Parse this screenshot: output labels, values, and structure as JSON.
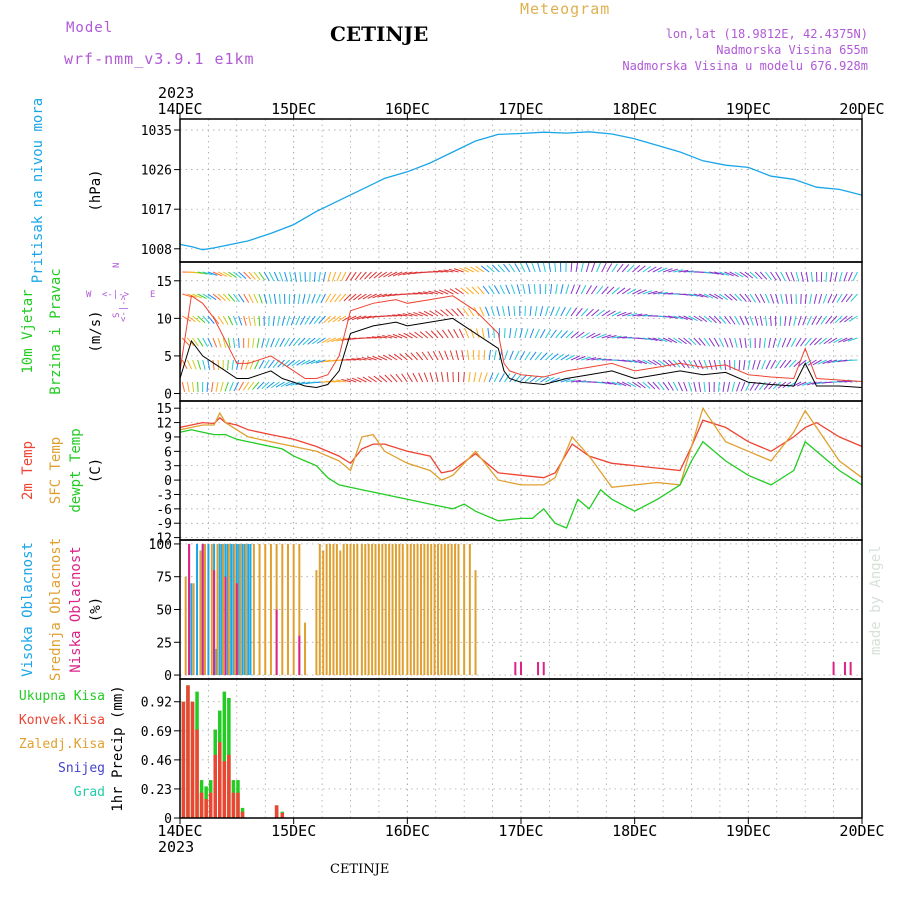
{
  "header": {
    "model_label": "Model",
    "model_name": "wrf-nmm_v3.9.1 e1km",
    "station_title": "CETINJE",
    "meteogram_label": "Meteogram",
    "lonlat": "lon,lat (18.9812E, 42.4375N)",
    "elevation": "Nadmorska Visina 655m",
    "model_elevation": "Nadmorska Visina u modelu 676.928m",
    "year_top": "2023",
    "year_bottom": "2023",
    "footer_station": "CETINJE",
    "credit": "made by Angel",
    "colors": {
      "model": "#b05ad6",
      "meteogram": "#e0b050",
      "station": "#000000"
    }
  },
  "time_axis": {
    "ticks": [
      "14DEC",
      "15DEC",
      "16DEC",
      "17DEC",
      "18DEC",
      "19DEC",
      "20DEC"
    ],
    "range_days": [
      0,
      6
    ]
  },
  "wind_legend": {
    "w": "W",
    "e": "E",
    "s": "S",
    "n": "N",
    "arrow_h": "<-|->",
    "arrow_v": "<-|->"
  },
  "chart_data": [
    {
      "type": "line",
      "panel": "pressure",
      "ylabel": [
        "Pritisak na nivou mora"
      ],
      "unit": "(hPa)",
      "yticks": [
        1008,
        1017,
        1026,
        1035
      ],
      "ylim": [
        1005,
        1037.5
      ],
      "grid": true,
      "series": [
        {
          "color": "#1aa6e8",
          "x": [
            0,
            0.1,
            0.2,
            0.3,
            0.45,
            0.6,
            0.8,
            1.0,
            1.2,
            1.4,
            1.6,
            1.8,
            2.0,
            2.2,
            2.4,
            2.6,
            2.8,
            3.0,
            3.2,
            3.4,
            3.6,
            3.8,
            4.0,
            4.2,
            4.4,
            4.6,
            4.8,
            5.0,
            5.2,
            5.4,
            5.6,
            5.8,
            6.0
          ],
          "y": [
            1009,
            1008.5,
            1007.8,
            1008.2,
            1009,
            1009.8,
            1011.5,
            1013.5,
            1016.5,
            1019,
            1021.5,
            1024,
            1025.5,
            1027.5,
            1030,
            1032.5,
            1034,
            1034.2,
            1034.5,
            1034.3,
            1034.6,
            1034.1,
            1033,
            1031.5,
            1030,
            1028,
            1027,
            1026.5,
            1024.5,
            1023.8,
            1022,
            1021.5,
            1020.2
          ]
        }
      ]
    },
    {
      "type": "line",
      "panel": "wind",
      "ylabel": [
        "10m Vjetar",
        "Brzina i Pravac"
      ],
      "unit": "(m/s)",
      "yticks": [
        0,
        5,
        10,
        15
      ],
      "ylim": [
        -1,
        17.5
      ],
      "grid": true,
      "series": [
        {
          "color": "#000000",
          "x": [
            0,
            0.1,
            0.2,
            0.3,
            0.4,
            0.5,
            0.6,
            0.7,
            0.8,
            0.9,
            1.0,
            1.1,
            1.2,
            1.3,
            1.4,
            1.5,
            1.7,
            1.9,
            2.0,
            2.2,
            2.4,
            2.6,
            2.7,
            2.8,
            2.85,
            2.9,
            3.0,
            3.2,
            3.4,
            3.6,
            3.8,
            4.0,
            4.2,
            4.4,
            4.6,
            4.8,
            5.0,
            5.2,
            5.4,
            5.5,
            5.6,
            5.8,
            6.0
          ],
          "y": [
            2,
            7,
            5,
            4,
            3,
            2,
            2,
            2.5,
            3,
            2,
            1.5,
            1,
            0.8,
            1.2,
            3,
            8,
            9,
            9.5,
            9,
            9.5,
            10,
            8,
            7,
            6,
            3,
            2,
            1.5,
            1.2,
            2,
            2.5,
            3,
            2,
            2.5,
            3,
            2.5,
            2.8,
            1.5,
            1.2,
            1,
            4,
            1,
            1,
            0.8
          ]
        },
        {
          "color": "#ee4433",
          "x": [
            0,
            0.1,
            0.2,
            0.3,
            0.4,
            0.5,
            0.6,
            0.7,
            0.8,
            0.9,
            1.0,
            1.1,
            1.2,
            1.3,
            1.4,
            1.5,
            1.7,
            1.9,
            2.0,
            2.2,
            2.4,
            2.6,
            2.7,
            2.8,
            2.85,
            2.9,
            3.0,
            3.2,
            3.4,
            3.6,
            3.8,
            4.0,
            4.2,
            4.4,
            4.6,
            4.8,
            5.0,
            5.2,
            5.4,
            5.5,
            5.6,
            5.8,
            6.0
          ],
          "y": [
            3,
            13,
            12,
            10,
            7,
            4,
            4,
            4.5,
            5,
            4,
            3,
            2,
            2,
            2.5,
            5,
            11,
            12,
            12.5,
            12,
            12.5,
            13,
            11,
            9.5,
            8,
            4,
            3,
            2.5,
            2.2,
            3,
            3.5,
            4,
            3,
            3.5,
            4,
            3.5,
            3.8,
            2.5,
            2.2,
            2,
            6,
            2,
            1.8,
            1.6
          ]
        }
      ]
    },
    {
      "type": "line",
      "panel": "temperature",
      "ylabel": [
        "2m Temp",
        "SFC Temp",
        "dewpt Temp"
      ],
      "unit": "(C)",
      "yticks": [
        -12,
        -9,
        -6,
        -3,
        0,
        3,
        6,
        9,
        12,
        15
      ],
      "ylim": [
        -12.5,
        16.5
      ],
      "grid": true,
      "series": [
        {
          "name": "2m Temp",
          "color": "#ee4433",
          "x": [
            0,
            0.1,
            0.2,
            0.3,
            0.35,
            0.4,
            0.5,
            0.6,
            0.8,
            1.0,
            1.2,
            1.4,
            1.5,
            1.6,
            1.7,
            1.8,
            2.0,
            2.2,
            2.3,
            2.4,
            2.6,
            2.8,
            3.0,
            3.2,
            3.3,
            3.45,
            3.6,
            3.8,
            4.0,
            4.2,
            4.4,
            4.5,
            4.6,
            4.8,
            5.0,
            5.2,
            5.4,
            5.5,
            5.6,
            5.8,
            6.0
          ],
          "y": [
            11,
            11.5,
            12,
            11.8,
            13,
            12,
            11.5,
            10.5,
            9.5,
            8.5,
            7,
            5,
            3.5,
            6.5,
            7.5,
            7.5,
            6,
            5,
            1.5,
            2,
            5.5,
            1.5,
            1,
            0.5,
            1.5,
            7.5,
            5,
            3.5,
            3,
            2.5,
            2,
            7,
            12.5,
            11,
            8,
            6,
            9,
            11,
            12,
            9,
            7
          ]
        },
        {
          "name": "SFC Temp",
          "color": "#e0a030",
          "x": [
            0,
            0.1,
            0.2,
            0.3,
            0.35,
            0.4,
            0.5,
            0.6,
            0.8,
            1.0,
            1.2,
            1.4,
            1.5,
            1.6,
            1.7,
            1.8,
            2.0,
            2.2,
            2.3,
            2.4,
            2.6,
            2.8,
            3.0,
            3.2,
            3.3,
            3.45,
            3.6,
            3.8,
            4.0,
            4.2,
            4.4,
            4.5,
            4.6,
            4.8,
            5.0,
            5.2,
            5.4,
            5.5,
            5.6,
            5.8,
            6.0
          ],
          "y": [
            10.5,
            11,
            11.5,
            11.5,
            14,
            12,
            10.5,
            9,
            8,
            7,
            6,
            4,
            2,
            9,
            9.5,
            6,
            3.5,
            2,
            0,
            1,
            6,
            0,
            -1,
            -1,
            0.5,
            9,
            5,
            -1.5,
            -1,
            -0.5,
            -1,
            7,
            15,
            8,
            6,
            4,
            10,
            14.5,
            11,
            4,
            0.5
          ]
        },
        {
          "name": "dewpt Temp",
          "color": "#22cc22",
          "x": [
            0,
            0.1,
            0.2,
            0.3,
            0.4,
            0.5,
            0.6,
            0.8,
            0.9,
            1.0,
            1.1,
            1.2,
            1.3,
            1.4,
            1.6,
            1.8,
            2.0,
            2.2,
            2.4,
            2.5,
            2.6,
            2.8,
            3.0,
            3.1,
            3.2,
            3.3,
            3.4,
            3.5,
            3.6,
            3.7,
            3.8,
            4.0,
            4.2,
            4.4,
            4.5,
            4.6,
            4.8,
            5.0,
            5.2,
            5.4,
            5.5,
            5.6,
            5.8,
            6.0
          ],
          "y": [
            10,
            10.5,
            10,
            9.5,
            9.5,
            8.5,
            8,
            7,
            6.5,
            5,
            4,
            3,
            0.5,
            -1,
            -2,
            -3,
            -4,
            -5,
            -6,
            -5,
            -6.5,
            -8.5,
            -8,
            -8,
            -6,
            -9,
            -10,
            -4,
            -6,
            -2,
            -4,
            -6.5,
            -4,
            -1,
            4,
            8,
            4,
            1,
            -1,
            2,
            8,
            6,
            2,
            -1
          ]
        }
      ]
    },
    {
      "type": "bar",
      "panel": "cloud",
      "ylabel": [
        "Visoka Oblacnost",
        "Srednja Oblacnost",
        "Niska Oblacnost"
      ],
      "unit": "(%)",
      "yticks": [
        0,
        25,
        50,
        75,
        100
      ],
      "ylim": [
        -3,
        103
      ],
      "grid": true,
      "series": [
        {
          "name": "Visoka Oblacnost",
          "color": "#1aa6e8",
          "x": [
            0.1,
            0.15,
            0.2,
            0.25,
            0.3,
            0.32,
            0.35,
            0.37,
            0.4,
            0.42,
            0.45,
            0.47,
            0.5,
            0.52,
            0.55,
            0.57,
            0.6,
            0.62
          ],
          "y": [
            70,
            100,
            100,
            100,
            100,
            20,
            100,
            100,
            100,
            100,
            100,
            100,
            100,
            100,
            100,
            100,
            100,
            100
          ]
        },
        {
          "name": "Srednja Oblacnost",
          "color": "#e0a030",
          "x": [
            0.05,
            0.08,
            0.12,
            0.18,
            0.22,
            0.28,
            0.33,
            0.38,
            0.43,
            0.48,
            0.53,
            0.58,
            0.65,
            0.7,
            0.75,
            0.8,
            0.85,
            0.9,
            0.95,
            1.0,
            1.05,
            1.1,
            1.2,
            1.23,
            1.26,
            1.29,
            1.32,
            1.35,
            1.38,
            1.41,
            1.44,
            1.47,
            1.5,
            1.53,
            1.56,
            1.6,
            1.63,
            1.66,
            1.69,
            1.72,
            1.75,
            1.78,
            1.81,
            1.84,
            1.87,
            1.9,
            1.93,
            1.96,
            2.0,
            2.03,
            2.06,
            2.09,
            2.12,
            2.15,
            2.18,
            2.21,
            2.24,
            2.27,
            2.3,
            2.33,
            2.36,
            2.39,
            2.42,
            2.45,
            2.5,
            2.55,
            2.6
          ],
          "y": [
            75,
            100,
            70,
            95,
            100,
            100,
            100,
            100,
            100,
            100,
            100,
            100,
            100,
            100,
            100,
            100,
            100,
            100,
            100,
            100,
            100,
            40,
            80,
            100,
            95,
            100,
            100,
            100,
            100,
            95,
            100,
            100,
            100,
            100,
            100,
            100,
            100,
            100,
            100,
            100,
            100,
            100,
            100,
            100,
            100,
            100,
            100,
            100,
            100,
            100,
            100,
            100,
            100,
            100,
            100,
            100,
            100,
            100,
            100,
            100,
            100,
            100,
            100,
            100,
            100,
            100,
            80
          ]
        },
        {
          "name": "Niska Oblacnost",
          "color": "#dd2288",
          "x": [
            0.08,
            0.2,
            0.3,
            0.4,
            0.5,
            0.85,
            1.05,
            2.95,
            3.0,
            3.15,
            3.2,
            5.75,
            5.85,
            5.9
          ],
          "y": [
            100,
            100,
            80,
            75,
            70,
            50,
            30,
            10,
            10,
            10,
            10,
            10,
            10,
            10
          ]
        }
      ]
    },
    {
      "type": "bar",
      "panel": "precip",
      "ylabel": [
        "1hr Precip (mm)"
      ],
      "legend": [
        "Ukupna Kisa",
        "Konvek.Kisa",
        "Zaledj.Kisa",
        "Snijeg",
        "Grad"
      ],
      "yticks": [
        0,
        0.23,
        0.46,
        0.69,
        0.92
      ],
      "ylim": [
        0,
        1.1
      ],
      "grid": true,
      "series": [
        {
          "name": "Ukupna Kisa",
          "color": "#22cc22",
          "x": [
            0.03,
            0.07,
            0.11,
            0.15,
            0.19,
            0.23,
            0.27,
            0.31,
            0.35,
            0.39,
            0.43,
            0.47,
            0.51,
            0.55,
            0.85,
            0.9
          ],
          "y": [
            0.92,
            1.05,
            0.92,
            1.0,
            0.3,
            0.25,
            0.3,
            0.7,
            0.85,
            1.0,
            0.95,
            0.3,
            0.3,
            0.08,
            0.1,
            0.05
          ]
        },
        {
          "name": "Konvek.Kisa",
          "color": "#ee4433",
          "x": [
            0.03,
            0.07,
            0.11,
            0.15,
            0.19,
            0.23,
            0.27,
            0.31,
            0.35,
            0.39,
            0.43,
            0.47,
            0.51,
            0.55,
            0.85,
            0.9
          ],
          "y": [
            0.92,
            1.05,
            0.92,
            0.7,
            0.2,
            0.15,
            0.2,
            0.5,
            0.6,
            0.45,
            0.5,
            0.2,
            0.2,
            0.05,
            0.1,
            0.04
          ]
        }
      ]
    }
  ]
}
